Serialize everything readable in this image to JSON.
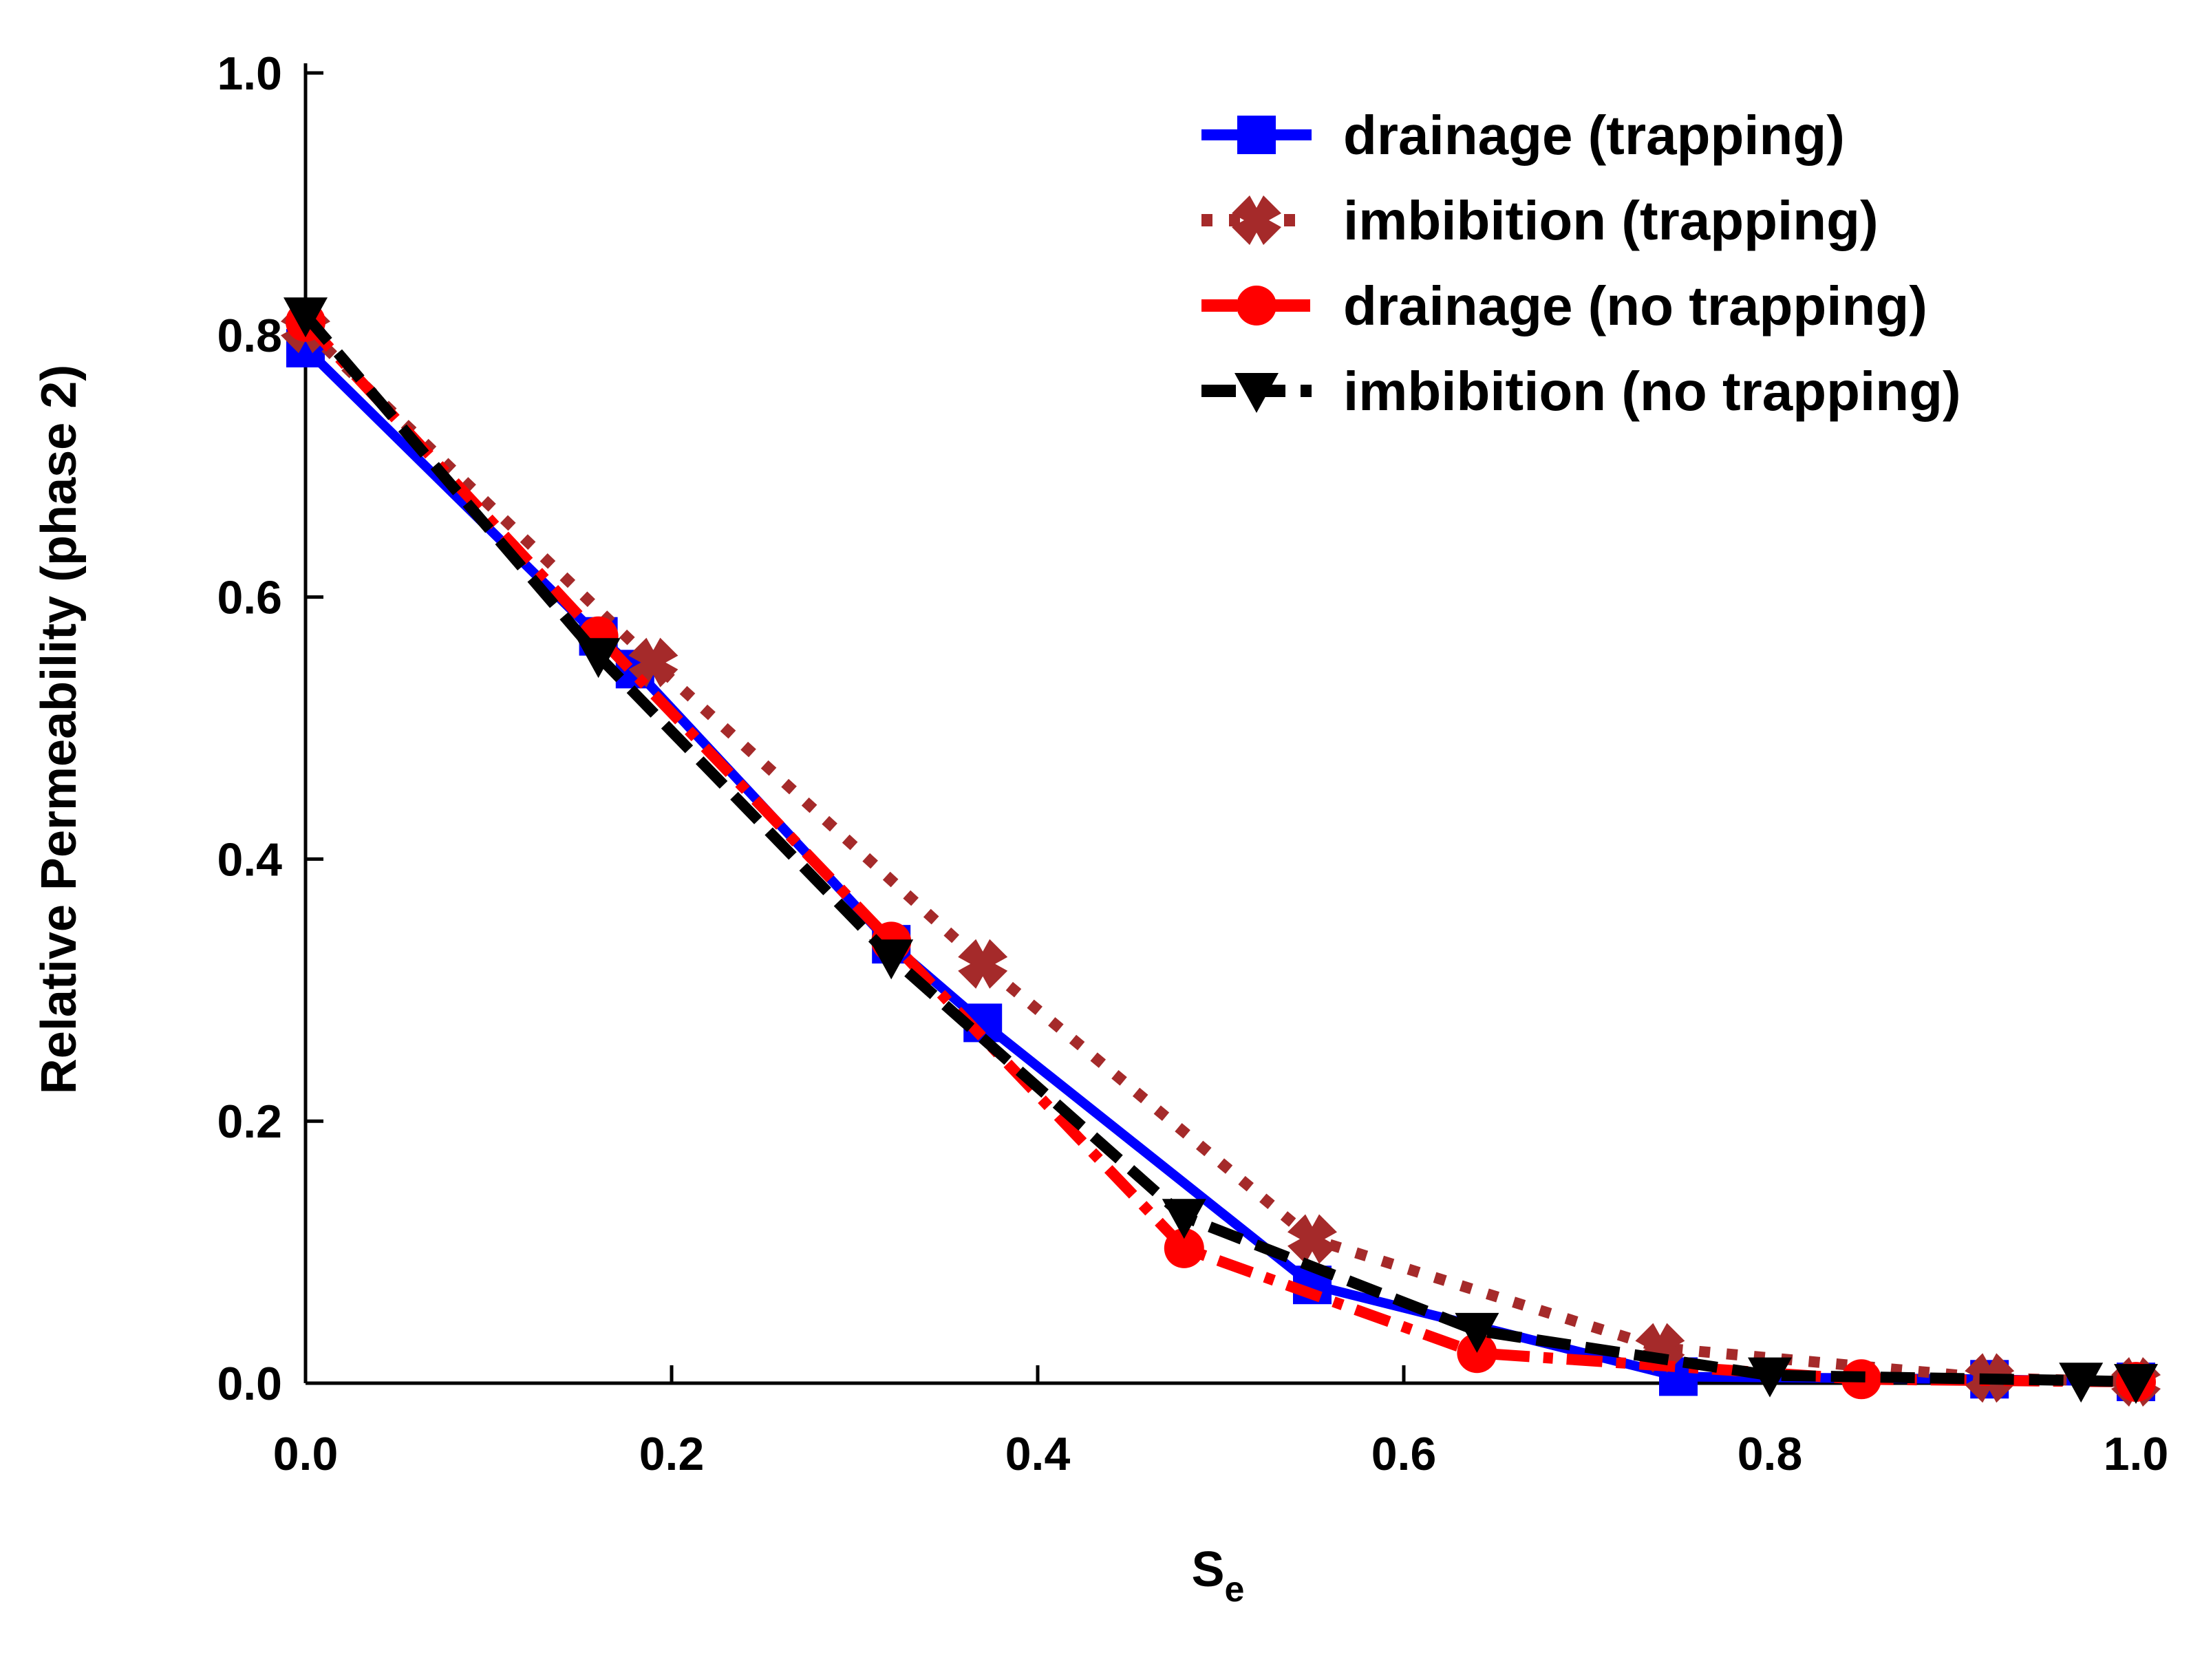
{
  "chart_data": {
    "type": "line",
    "title": "",
    "xlabel": "S",
    "xlabel_subscript": "e",
    "ylabel": "Relative Permeability (phase 2)",
    "xlim": [
      0.0,
      1.0
    ],
    "ylim": [
      0.0,
      1.0
    ],
    "xticks": [
      "0.0",
      "0.2",
      "0.4",
      "0.6",
      "0.8",
      "1.0"
    ],
    "yticks": [
      "0.0",
      "0.2",
      "0.4",
      "0.6",
      "0.8",
      "1.0"
    ],
    "grid": false,
    "legend_position": "top-right",
    "series": [
      {
        "name": "drainage (trapping)",
        "color": "#0000ff",
        "line_style": "solid",
        "marker": "square",
        "x": [
          0.0,
          0.16,
          0.18,
          0.32,
          0.37,
          0.55,
          0.75,
          0.92,
          1.0
        ],
        "y": [
          0.79,
          0.57,
          0.545,
          0.335,
          0.275,
          0.075,
          0.005,
          0.003,
          0.001
        ]
      },
      {
        "name": "imbibition (trapping)",
        "color": "#a52a2a",
        "line_style": "dotted",
        "marker": "x",
        "x": [
          0.0,
          0.19,
          0.37,
          0.55,
          0.74,
          0.92,
          1.0
        ],
        "y": [
          0.805,
          0.55,
          0.32,
          0.11,
          0.027,
          0.004,
          0.001
        ]
      },
      {
        "name": "drainage (no trapping)",
        "color": "#ff0000",
        "line_style": "dashdot",
        "marker": "circle",
        "x": [
          0.0,
          0.16,
          0.32,
          0.48,
          0.64,
          0.85,
          1.0
        ],
        "y": [
          0.81,
          0.57,
          0.337,
          0.103,
          0.023,
          0.003,
          0.001
        ]
      },
      {
        "name": "imbibition (no trapping)",
        "color": "#000000",
        "line_style": "dashed",
        "marker": "triangle-down",
        "x": [
          0.0,
          0.16,
          0.32,
          0.48,
          0.64,
          0.8,
          0.97,
          1.0
        ],
        "y": [
          0.815,
          0.555,
          0.325,
          0.127,
          0.04,
          0.006,
          0.002,
          0.001
        ]
      }
    ]
  }
}
